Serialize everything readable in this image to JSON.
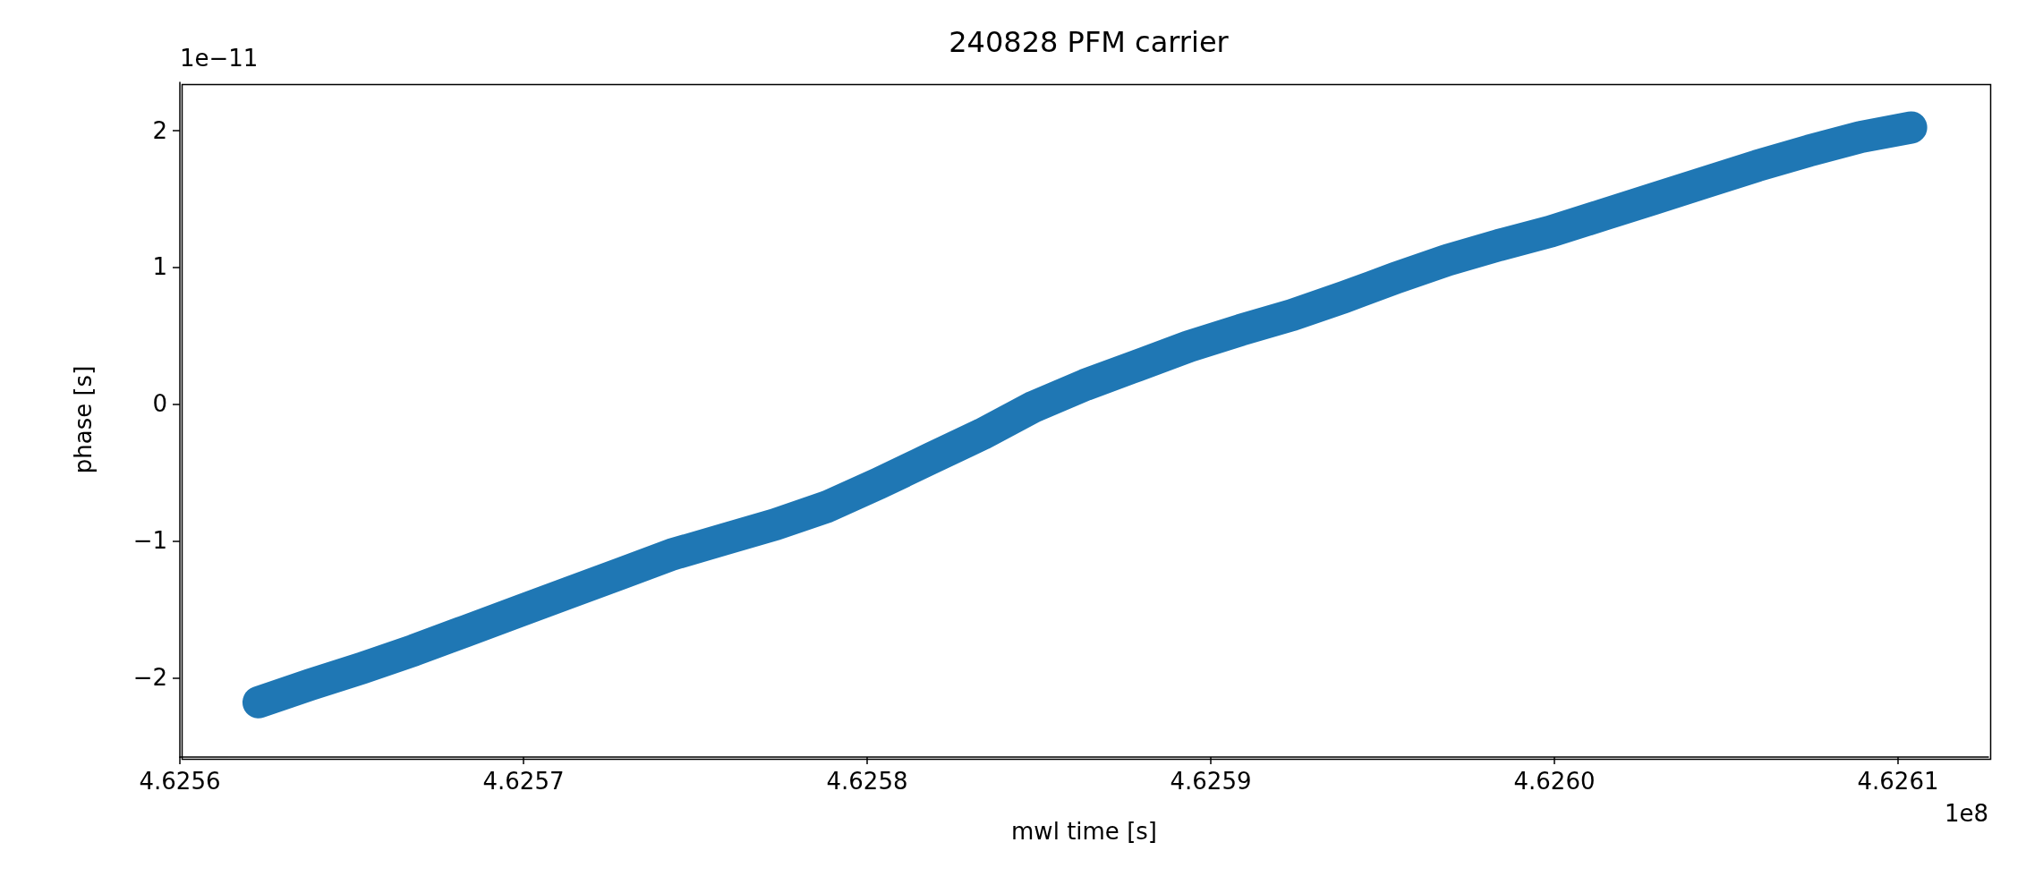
{
  "chart_data": {
    "type": "line",
    "title": "240828 PFM carrier",
    "xlabel": "mwl time [s]",
    "ylabel": "phase [s]",
    "annotations": [
      "1e−11",
      "1e8"
    ],
    "xlim": [
      4.6256,
      4.6261263
    ],
    "xticks": [
      4.6256,
      4.6257,
      4.6258,
      4.6259,
      {
        "value": 4.626,
        "label": "4.6260"
      },
      4.6261
    ],
    "ylim": [
      -2.58,
      2.35
    ],
    "yticks": [
      {
        "value": -2,
        "label": "−2"
      },
      {
        "value": -1,
        "label": "−1"
      },
      0,
      1,
      2
    ],
    "line_style": "solid",
    "series": [
      {
        "color": "#1f77b4",
        "x": [
          4.6256229,
          4.625638,
          4.625653,
          4.6256681,
          4.6256831,
          4.6256981,
          4.6257132,
          4.6257282,
          4.6257432,
          4.6257583,
          4.6257733,
          4.6257884,
          4.6258034,
          4.6258184,
          4.6258335,
          4.6258485,
          4.6258635,
          4.6258786,
          4.6258936,
          4.6259087,
          4.6259237,
          4.6259387,
          4.6259538,
          4.6259688,
          4.6259838,
          4.6259989,
          4.6260139,
          4.626029,
          4.626044,
          4.626059,
          4.6260741,
          4.6260891,
          4.6261038
        ],
        "values": [
          -2.18,
          -2.05,
          -1.93,
          -1.8,
          -1.66,
          -1.52,
          -1.38,
          -1.24,
          -1.1,
          -0.99,
          -0.88,
          -0.75,
          -0.58,
          -0.4,
          -0.22,
          -0.02,
          0.14,
          0.28,
          0.42,
          0.54,
          0.65,
          0.78,
          0.92,
          1.05,
          1.16,
          1.26,
          1.38,
          1.5,
          1.62,
          1.74,
          1.85,
          1.95,
          2.02
        ]
      }
    ]
  }
}
